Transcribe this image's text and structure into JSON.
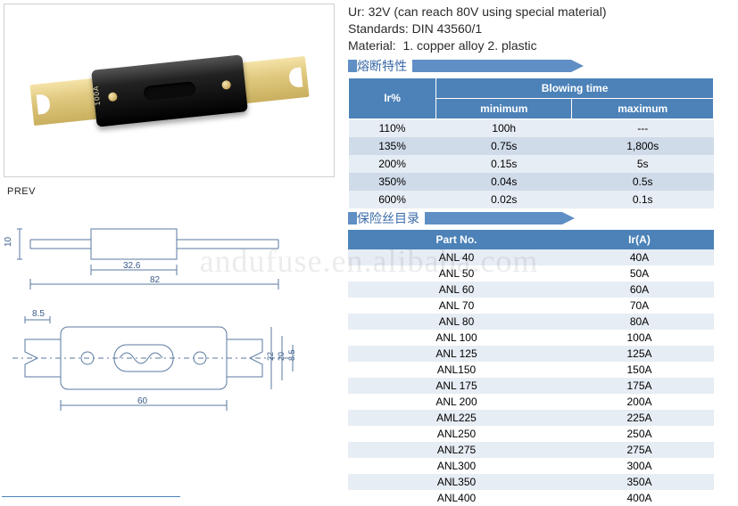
{
  "watermark": "andufuse.en.alibaba.com",
  "photo": {
    "label_text": "100A"
  },
  "prev_label": "PREV",
  "diagram": {
    "top": {
      "overall_len": "82",
      "body_len": "32.6",
      "height_dim": "10"
    },
    "bottom": {
      "body_len": "60",
      "overall_h": "22",
      "body_h": "20",
      "slot_h": "8.5",
      "blade_w": "8.5"
    }
  },
  "specs": {
    "line1_label": "Ur:",
    "line1_val": "32V (can reach 80V using special material)",
    "line2_label": "Standards:",
    "line2_val": "DIN 43560/1",
    "line3_label": "Material:",
    "line3_val": "1. copper alloy 2. plastic"
  },
  "section_labels": {
    "blowing": "熔断特性",
    "catalog": "保险丝目录"
  },
  "blowing_table": {
    "headers": {
      "ir": "Ir%",
      "span": "Blowing time",
      "min": "minimum",
      "max": "maximum"
    },
    "rows": [
      {
        "ir": "110%",
        "min": "100h",
        "max": "---"
      },
      {
        "ir": "135%",
        "min": "0.75s",
        "max": "1,800s"
      },
      {
        "ir": "200%",
        "min": "0.15s",
        "max": "5s"
      },
      {
        "ir": "350%",
        "min": "0.04s",
        "max": "0.5s"
      },
      {
        "ir": "600%",
        "min": "0.02s",
        "max": "0.1s"
      }
    ]
  },
  "catalog_table": {
    "headers": {
      "part": "Part No.",
      "ir": "Ir(A)"
    },
    "rows": [
      {
        "p": "ANL 40",
        "i": "40A"
      },
      {
        "p": "ANL 50",
        "i": "50A"
      },
      {
        "p": "ANL 60",
        "i": "60A"
      },
      {
        "p": "ANL 70",
        "i": "70A"
      },
      {
        "p": "ANL 80",
        "i": "80A"
      },
      {
        "p": "ANL 100",
        "i": "100A"
      },
      {
        "p": "ANL 125",
        "i": "125A"
      },
      {
        "p": "ANL150",
        "i": "150A"
      },
      {
        "p": "ANL 175",
        "i": "175A"
      },
      {
        "p": "ANL 200",
        "i": "200A"
      },
      {
        "p": "AML225",
        "i": "225A"
      },
      {
        "p": "ANL250",
        "i": "250A"
      },
      {
        "p": "ANL275",
        "i": "275A"
      },
      {
        "p": "ANL300",
        "i": "300A"
      },
      {
        "p": "ANL350",
        "i": "350A"
      },
      {
        "p": "ANL400",
        "i": "400A"
      }
    ]
  },
  "colors": {
    "header_bg": "#4c82b8",
    "row_odd": "#e7edf4",
    "row_even_blow": "#cfdbe9",
    "section_bar": "#5f8fc4",
    "section_text": "#3a6aa8"
  }
}
